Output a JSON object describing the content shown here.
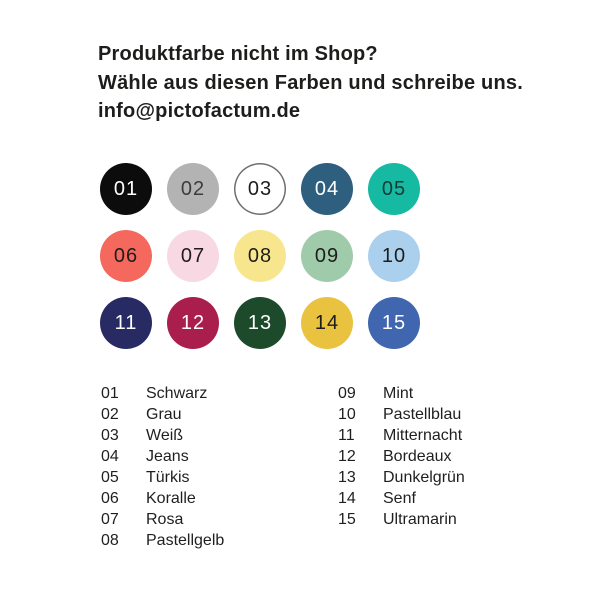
{
  "page": {
    "background": "#ffffff"
  },
  "header": {
    "line1": "Produktfarbe nicht im Shop?",
    "line2": "Wähle aus diesen Farben und schreibe uns.",
    "line3": "info@pictofactum.de"
  },
  "swatches": [
    {
      "number": "01",
      "name": "Schwarz",
      "bg": "#0c0c0c",
      "text": "#ffffff",
      "border": "none"
    },
    {
      "number": "02",
      "name": "Grau",
      "bg": "#b3b3b3",
      "text": "#3c3c3c",
      "border": "none"
    },
    {
      "number": "03",
      "name": "Weiß",
      "bg": "#ffffff",
      "text": "#1d1d1b",
      "border": "#6f6f6f"
    },
    {
      "number": "04",
      "name": "Jeans",
      "bg": "#2e5f7f",
      "text": "#ffffff",
      "border": "none"
    },
    {
      "number": "05",
      "name": "Türkis",
      "bg": "#16b9a1",
      "text": "#153b34",
      "border": "none"
    },
    {
      "number": "06",
      "name": "Koralle",
      "bg": "#f4685d",
      "text": "#1d1d1b",
      "border": "none"
    },
    {
      "number": "07",
      "name": "Rosa",
      "bg": "#f7d8e3",
      "text": "#1d1d1b",
      "border": "none"
    },
    {
      "number": "08",
      "name": "Pastellgelb",
      "bg": "#f8e68f",
      "text": "#1d1d1b",
      "border": "none"
    },
    {
      "number": "09",
      "name": "Mint",
      "bg": "#a0cbaa",
      "text": "#1d1d1b",
      "border": "none"
    },
    {
      "number": "10",
      "name": "Pastellblau",
      "bg": "#abd0ee",
      "text": "#1d1d1b",
      "border": "none"
    },
    {
      "number": "11",
      "name": "Mitternacht",
      "bg": "#272a63",
      "text": "#ffffff",
      "border": "none"
    },
    {
      "number": "12",
      "name": "Bordeaux",
      "bg": "#aa1e4e",
      "text": "#ffffff",
      "border": "none"
    },
    {
      "number": "13",
      "name": "Dunkelgrün",
      "bg": "#1c4a2a",
      "text": "#ffffff",
      "border": "none"
    },
    {
      "number": "14",
      "name": "Senf",
      "bg": "#e9c33f",
      "text": "#1d1d1b",
      "border": "none"
    },
    {
      "number": "15",
      "name": "Ultramarin",
      "bg": "#4166b0",
      "text": "#ffffff",
      "border": "none"
    }
  ],
  "legend": {
    "left_count": 8,
    "right_count": 7
  }
}
